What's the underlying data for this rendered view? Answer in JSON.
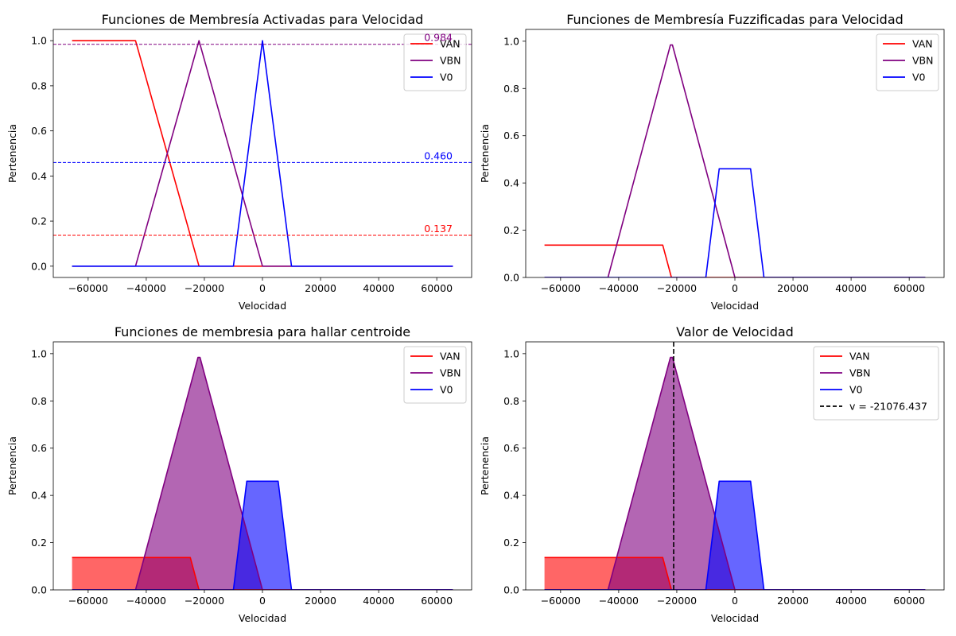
{
  "chart_data": [
    {
      "type": "line",
      "title": "Funciones de Membresía Activadas para Velocidad",
      "xlabel": "Velocidad",
      "ylabel": "Pertenencia",
      "xlim": [
        -72000,
        72000
      ],
      "ylim": [
        -0.05,
        1.05
      ],
      "xticks": [
        "−60000",
        "−40000",
        "−20000",
        "0",
        "20000",
        "40000",
        "60000"
      ],
      "yticks": [
        "0.0",
        "0.2",
        "0.4",
        "0.6",
        "0.8",
        "1.0"
      ],
      "legend_position": "top-right",
      "series": [
        {
          "name": "VAN",
          "color": "#ff0000",
          "fill": false,
          "x": [
            -65536,
            -43691,
            -21845,
            65536
          ],
          "y": [
            1,
            1,
            0,
            0
          ]
        },
        {
          "name": "VBN",
          "color": "#800080",
          "fill": false,
          "x": [
            -65536,
            -43691,
            -21845,
            0,
            65536
          ],
          "y": [
            0,
            0,
            1,
            0,
            0
          ]
        },
        {
          "name": "V0",
          "color": "#0000ff",
          "fill": false,
          "x": [
            -65536,
            -10000,
            0,
            10000,
            65536
          ],
          "y": [
            0,
            0,
            1,
            0,
            0
          ]
        }
      ],
      "hlines": [
        {
          "y": 0.984,
          "color": "#800080",
          "label": "0.984"
        },
        {
          "y": 0.46,
          "color": "#0000ff",
          "label": "0.460"
        },
        {
          "y": 0.137,
          "color": "#ff0000",
          "label": "0.137"
        }
      ]
    },
    {
      "type": "line",
      "title": "Funciones de Membresía Fuzzificadas para Velocidad",
      "xlabel": "Velocidad",
      "ylabel": "Pertenencia",
      "xlim": [
        -72000,
        72000
      ],
      "ylim": [
        0,
        1.05
      ],
      "xticks": [
        "−60000",
        "−40000",
        "−20000",
        "0",
        "20000",
        "40000",
        "60000"
      ],
      "yticks": [
        "0.0",
        "0.2",
        "0.4",
        "0.6",
        "0.8",
        "1.0"
      ],
      "legend_position": "top-right",
      "series": [
        {
          "name": "VAN",
          "color": "#ff0000",
          "fill": false,
          "x": [
            -65536,
            -24838,
            -21845,
            65536
          ],
          "y": [
            0.137,
            0.137,
            0,
            0
          ]
        },
        {
          "name": "VBN",
          "color": "#800080",
          "fill": false,
          "x": [
            -65536,
            -43691,
            -22195,
            -21495,
            0,
            65536
          ],
          "y": [
            0,
            0,
            0.984,
            0.984,
            0,
            0
          ]
        },
        {
          "name": "V0",
          "color": "#0000ff",
          "fill": false,
          "x": [
            -65536,
            -10000,
            -5400,
            5400,
            10000,
            65536
          ],
          "y": [
            0,
            0,
            0.46,
            0.46,
            0,
            0
          ]
        }
      ]
    },
    {
      "type": "area",
      "title": "Funciones de membresia para hallar centroide",
      "xlabel": "Velocidad",
      "ylabel": "Pertenencia",
      "xlim": [
        -72000,
        72000
      ],
      "ylim": [
        0,
        1.05
      ],
      "xticks": [
        "−60000",
        "−40000",
        "−20000",
        "0",
        "20000",
        "40000",
        "60000"
      ],
      "yticks": [
        "0.0",
        "0.2",
        "0.4",
        "0.6",
        "0.8",
        "1.0"
      ],
      "legend_position": "top-right",
      "series": [
        {
          "name": "VAN",
          "color": "#ff0000",
          "fill": true,
          "x": [
            -65536,
            -24838,
            -21845,
            65536
          ],
          "y": [
            0.137,
            0.137,
            0,
            0
          ]
        },
        {
          "name": "VBN",
          "color": "#800080",
          "fill": true,
          "x": [
            -65536,
            -43691,
            -22195,
            -21495,
            0,
            65536
          ],
          "y": [
            0,
            0,
            0.984,
            0.984,
            0,
            0
          ]
        },
        {
          "name": "V0",
          "color": "#0000ff",
          "fill": true,
          "x": [
            -65536,
            -10000,
            -5400,
            5400,
            10000,
            65536
          ],
          "y": [
            0,
            0,
            0.46,
            0.46,
            0,
            0
          ]
        }
      ]
    },
    {
      "type": "area",
      "title": "Valor de Velocidad",
      "xlabel": "Velocidad",
      "ylabel": "Pertenencia",
      "xlim": [
        -72000,
        72000
      ],
      "ylim": [
        0,
        1.05
      ],
      "xticks": [
        "−60000",
        "−40000",
        "−20000",
        "0",
        "20000",
        "40000",
        "60000"
      ],
      "yticks": [
        "0.0",
        "0.2",
        "0.4",
        "0.6",
        "0.8",
        "1.0"
      ],
      "legend_position": "top-right",
      "series": [
        {
          "name": "VAN",
          "color": "#ff0000",
          "fill": true,
          "x": [
            -65536,
            -24838,
            -21845,
            65536
          ],
          "y": [
            0.137,
            0.137,
            0,
            0
          ]
        },
        {
          "name": "VBN",
          "color": "#800080",
          "fill": true,
          "x": [
            -65536,
            -43691,
            -22195,
            -21495,
            0,
            65536
          ],
          "y": [
            0,
            0,
            0.984,
            0.984,
            0,
            0
          ]
        },
        {
          "name": "V0",
          "color": "#0000ff",
          "fill": true,
          "x": [
            -65536,
            -10000,
            -5400,
            5400,
            10000,
            65536
          ],
          "y": [
            0,
            0,
            0.46,
            0.46,
            0,
            0
          ]
        }
      ],
      "vline": {
        "x": -21076.437,
        "color": "#000000",
        "label": "v = -21076.437"
      }
    }
  ]
}
